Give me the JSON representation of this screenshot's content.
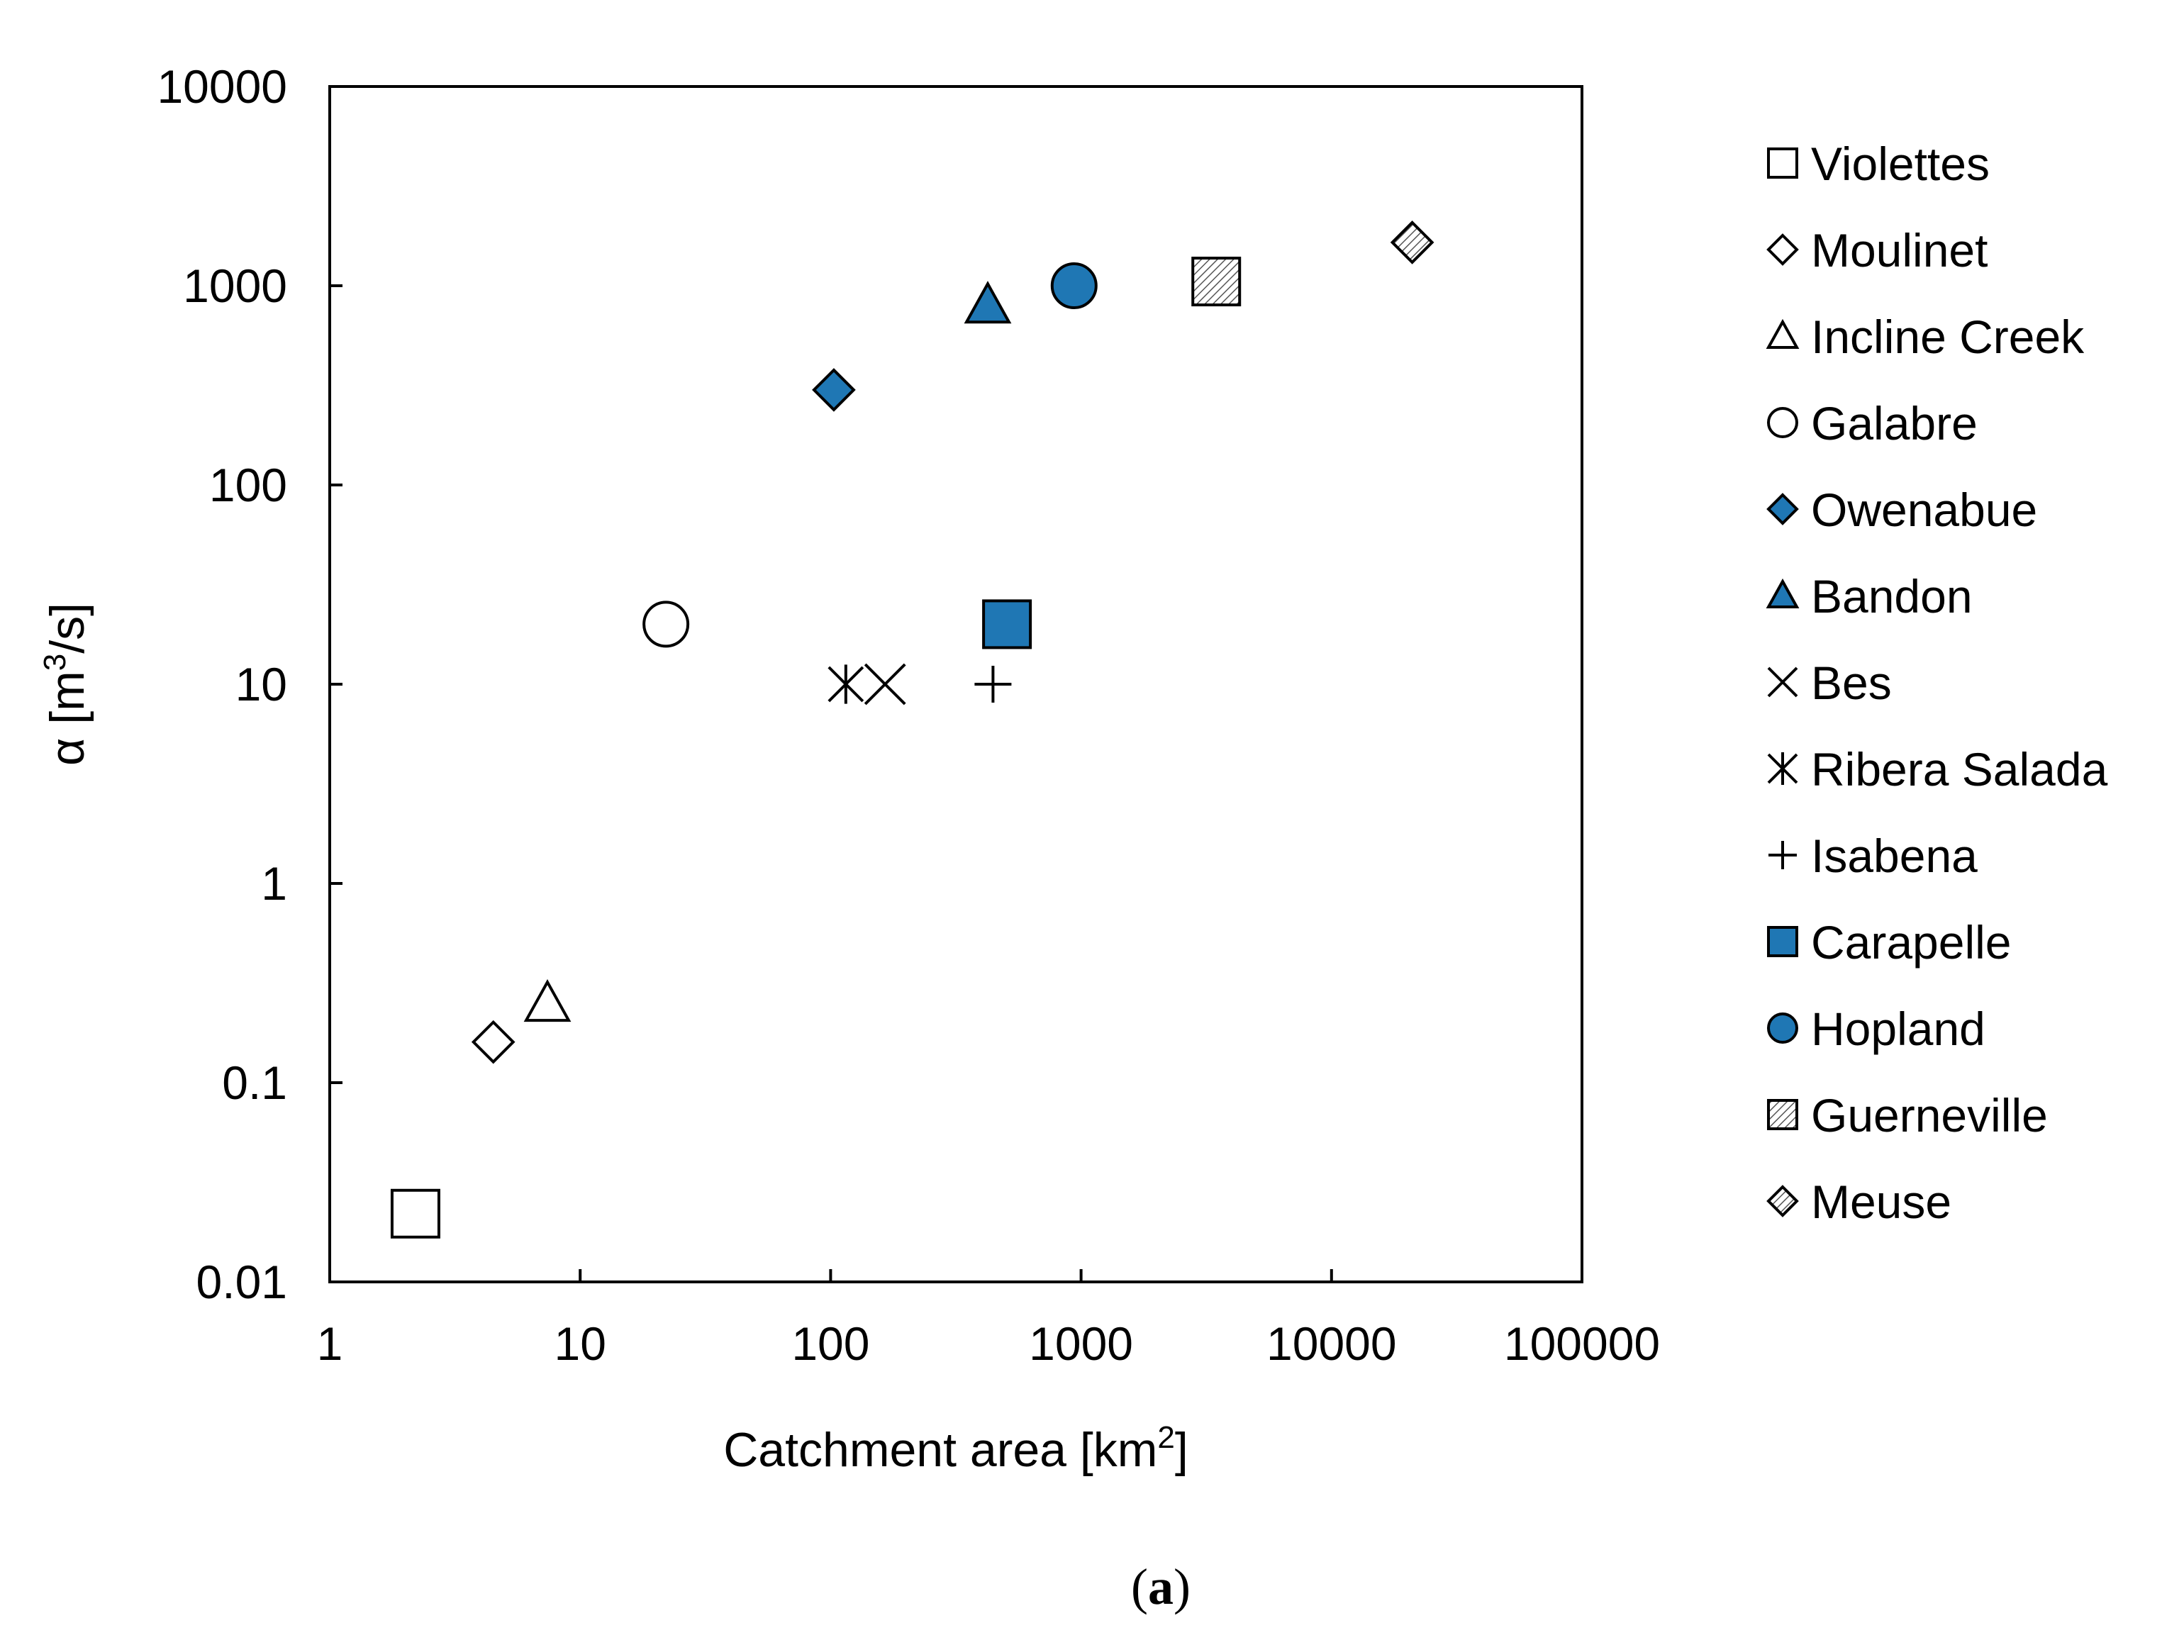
{
  "chart_data": {
    "type": "scatter",
    "xlabel": "Catchment area [km",
    "xlabel_sup": "2",
    "xlabel_end": "]",
    "ylabel": "α [m",
    "ylabel_sup": "3",
    "ylabel_end": "/s]",
    "x_scale": "log",
    "y_scale": "log",
    "xlim": [
      1,
      100000
    ],
    "ylim": [
      0.01,
      10000
    ],
    "x_ticks": [
      "1",
      "10",
      "100",
      "1000",
      "10000",
      "100000"
    ],
    "y_ticks": [
      "0.01",
      "0.1",
      "1",
      "10",
      "100",
      "1000",
      "10000"
    ],
    "grid": false,
    "legend_position": "right",
    "colors": {
      "blue": "#1f77b4",
      "outline": "#000000",
      "white": "#ffffff"
    },
    "series": [
      {
        "name": "Violettes",
        "marker": "square",
        "fill": "white",
        "x": 2.2,
        "y": 0.022
      },
      {
        "name": "Moulinet",
        "marker": "diamond",
        "fill": "white",
        "x": 4.5,
        "y": 0.16
      },
      {
        "name": "Incline Creek",
        "marker": "triangle",
        "fill": "white",
        "x": 7.4,
        "y": 0.25
      },
      {
        "name": "Galabre",
        "marker": "circle",
        "fill": "white",
        "x": 22,
        "y": 20
      },
      {
        "name": "Owenabue",
        "marker": "diamond",
        "fill": "blue",
        "x": 103,
        "y": 300
      },
      {
        "name": "Bandon",
        "marker": "triangle",
        "fill": "blue",
        "x": 424,
        "y": 800
      },
      {
        "name": "Bes",
        "marker": "x",
        "fill": "none",
        "x": 165,
        "y": 10
      },
      {
        "name": "Ribera Salada",
        "marker": "asterisk",
        "fill": "none",
        "x": 115,
        "y": 10
      },
      {
        "name": "Isabena",
        "marker": "plus",
        "fill": "none",
        "x": 445,
        "y": 10
      },
      {
        "name": "Carapelle",
        "marker": "square",
        "fill": "blue",
        "x": 506,
        "y": 20
      },
      {
        "name": "Hopland",
        "marker": "circle",
        "fill": "blue",
        "x": 938,
        "y": 1000
      },
      {
        "name": "Guerneville",
        "marker": "square",
        "fill": "hatch",
        "x": 3465,
        "y": 1050
      },
      {
        "name": "Meuse",
        "marker": "diamond",
        "fill": "hatch",
        "x": 21000,
        "y": 1650
      }
    ]
  },
  "caption": {
    "open": "(",
    "letter": "a",
    "close": ")"
  }
}
